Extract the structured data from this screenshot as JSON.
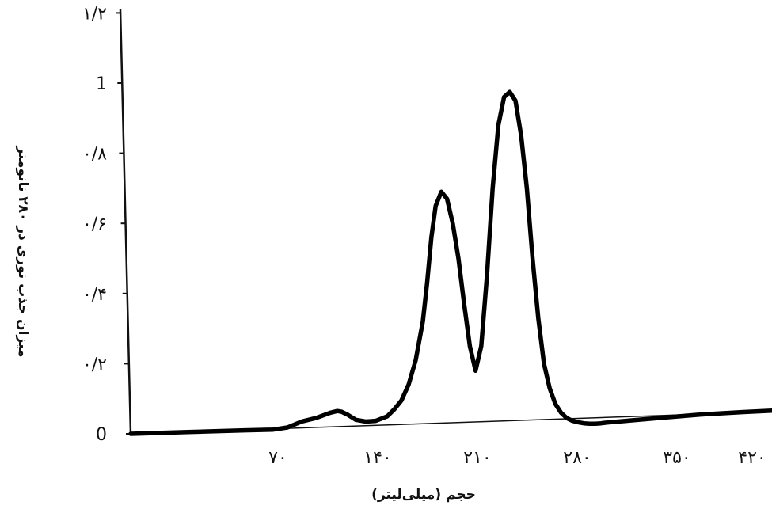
{
  "chart_data": {
    "type": "line",
    "title": "",
    "xlabel": "حجم (میلی‌لیتر)",
    "ylabel": "میزان جذب نوری در ۲۸۰ نانومتر",
    "xlim": [
      0,
      450
    ],
    "ylim": [
      0,
      1.2
    ],
    "x_ticks": [
      70,
      140,
      210,
      280,
      350,
      420
    ],
    "x_tick_labels": [
      "۷۰",
      "۱۴۰",
      "۲۱۰",
      "۲۸۰",
      "۳۵۰",
      "۴۲۰"
    ],
    "y_ticks": [
      0,
      0.2,
      0.4,
      0.6,
      0.8,
      1,
      1.2
    ],
    "y_tick_labels": [
      "0",
      "۰/۲",
      "۰/۴",
      "۰/۶",
      "۰/۸",
      "1",
      "۱/۲"
    ],
    "grid": false,
    "legend": "none",
    "series": [
      {
        "color": "#000000",
        "x": [
          0,
          40,
          80,
          100,
          110,
          120,
          130,
          140,
          145,
          148,
          152,
          158,
          165,
          172,
          180,
          185,
          190,
          195,
          200,
          205,
          208,
          211,
          214,
          218,
          222,
          226,
          230,
          234,
          238,
          242,
          246,
          250,
          254,
          258,
          262,
          266,
          270,
          274,
          278,
          282,
          286,
          290,
          294,
          298,
          302,
          306,
          310,
          314,
          318,
          322,
          326,
          330,
          334,
          340,
          350,
          370,
          400,
          430,
          450
        ],
        "y": [
          0,
          0.005,
          0.01,
          0.012,
          0.018,
          0.035,
          0.045,
          0.06,
          0.065,
          0.063,
          0.055,
          0.04,
          0.035,
          0.037,
          0.05,
          0.07,
          0.095,
          0.14,
          0.21,
          0.32,
          0.43,
          0.56,
          0.65,
          0.69,
          0.67,
          0.6,
          0.5,
          0.37,
          0.25,
          0.18,
          0.25,
          0.45,
          0.7,
          0.88,
          0.96,
          0.975,
          0.95,
          0.85,
          0.7,
          0.5,
          0.33,
          0.2,
          0.13,
          0.085,
          0.06,
          0.045,
          0.037,
          0.033,
          0.03,
          0.029,
          0.029,
          0.03,
          0.032,
          0.034,
          0.038,
          0.045,
          0.055,
          0.062,
          0.066
        ]
      }
    ]
  }
}
